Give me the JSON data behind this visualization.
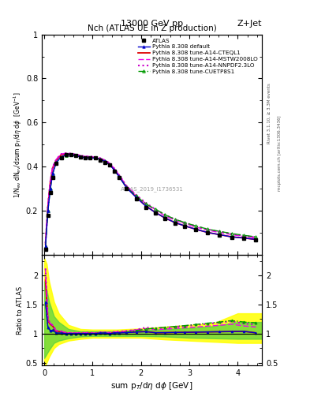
{
  "title_left": "13000 GeV pp",
  "title_right": "Z+Jet",
  "plot_title": "Nch (ATLAS UE in Z production)",
  "ylabel_main": "1/N_{ev} dN_{ev}/dsum p_{T}/d\\eta d\\phi  [GeV^{-1}]",
  "ylabel_ratio": "Ratio to ATLAS",
  "watermark": "ATLAS_2019_I1736531",
  "rivet_text": "Rivet 3.1.10, ≥ 3.3M events",
  "mcplots_text": "mcplots.cern.ch [arXiv:1306.3436]",
  "xlim": [
    -0.05,
    4.5
  ],
  "ylim_main": [
    0,
    1.0
  ],
  "ylim_ratio": [
    0.45,
    2.35
  ],
  "atlas_x": [
    0.025,
    0.075,
    0.125,
    0.175,
    0.25,
    0.35,
    0.45,
    0.55,
    0.65,
    0.75,
    0.85,
    0.95,
    1.05,
    1.15,
    1.25,
    1.35,
    1.45,
    1.55,
    1.7,
    1.9,
    2.1,
    2.3,
    2.5,
    2.7,
    2.9,
    3.125,
    3.375,
    3.625,
    3.875,
    4.125,
    4.375
  ],
  "atlas_y": [
    0.026,
    0.18,
    0.285,
    0.35,
    0.415,
    0.44,
    0.455,
    0.455,
    0.45,
    0.445,
    0.44,
    0.44,
    0.44,
    0.43,
    0.42,
    0.41,
    0.38,
    0.35,
    0.3,
    0.255,
    0.215,
    0.19,
    0.165,
    0.145,
    0.13,
    0.115,
    0.1,
    0.09,
    0.08,
    0.075,
    0.07
  ],
  "default_x": [
    0.025,
    0.075,
    0.125,
    0.175,
    0.25,
    0.35,
    0.45,
    0.55,
    0.65,
    0.75,
    0.85,
    0.95,
    1.05,
    1.15,
    1.25,
    1.35,
    1.45,
    1.55,
    1.7,
    1.9,
    2.1,
    2.3,
    2.5,
    2.7,
    2.9,
    3.125,
    3.375,
    3.625,
    3.875,
    4.125,
    4.375
  ],
  "default_y": [
    0.04,
    0.2,
    0.3,
    0.37,
    0.42,
    0.445,
    0.455,
    0.455,
    0.45,
    0.445,
    0.44,
    0.44,
    0.44,
    0.435,
    0.425,
    0.41,
    0.385,
    0.355,
    0.305,
    0.262,
    0.222,
    0.193,
    0.168,
    0.148,
    0.133,
    0.118,
    0.103,
    0.093,
    0.083,
    0.078,
    0.071
  ],
  "cteq_x": [
    0.025,
    0.075,
    0.125,
    0.175,
    0.25,
    0.35,
    0.45,
    0.55,
    0.65,
    0.75,
    0.85,
    0.95,
    1.05,
    1.15,
    1.25,
    1.35,
    1.45,
    1.55,
    1.7,
    1.9,
    2.1,
    2.3,
    2.5,
    2.7,
    2.9,
    3.125,
    3.375,
    3.625,
    3.875,
    4.125,
    4.375
  ],
  "cteq_y": [
    0.05,
    0.22,
    0.33,
    0.395,
    0.43,
    0.455,
    0.458,
    0.456,
    0.452,
    0.447,
    0.443,
    0.443,
    0.441,
    0.436,
    0.426,
    0.412,
    0.387,
    0.357,
    0.307,
    0.263,
    0.223,
    0.193,
    0.168,
    0.148,
    0.133,
    0.118,
    0.103,
    0.093,
    0.083,
    0.078,
    0.071
  ],
  "mstw_x": [
    0.025,
    0.075,
    0.125,
    0.175,
    0.25,
    0.35,
    0.45,
    0.55,
    0.65,
    0.75,
    0.85,
    0.95,
    1.05,
    1.15,
    1.25,
    1.35,
    1.45,
    1.55,
    1.7,
    1.9,
    2.1,
    2.3,
    2.5,
    2.7,
    2.9,
    3.125,
    3.375,
    3.625,
    3.875,
    4.125,
    4.375
  ],
  "mstw_y": [
    0.055,
    0.225,
    0.335,
    0.4,
    0.435,
    0.458,
    0.462,
    0.46,
    0.456,
    0.451,
    0.447,
    0.447,
    0.444,
    0.44,
    0.43,
    0.417,
    0.392,
    0.362,
    0.314,
    0.272,
    0.233,
    0.203,
    0.178,
    0.158,
    0.143,
    0.128,
    0.113,
    0.103,
    0.093,
    0.085,
    0.078
  ],
  "nnpdf_x": [
    0.025,
    0.075,
    0.125,
    0.175,
    0.25,
    0.35,
    0.45,
    0.55,
    0.65,
    0.75,
    0.85,
    0.95,
    1.05,
    1.15,
    1.25,
    1.35,
    1.45,
    1.55,
    1.7,
    1.9,
    2.1,
    2.3,
    2.5,
    2.7,
    2.9,
    3.125,
    3.375,
    3.625,
    3.875,
    4.125,
    4.375
  ],
  "nnpdf_y": [
    0.055,
    0.225,
    0.335,
    0.4,
    0.435,
    0.458,
    0.462,
    0.46,
    0.456,
    0.451,
    0.447,
    0.447,
    0.444,
    0.44,
    0.43,
    0.417,
    0.392,
    0.362,
    0.314,
    0.272,
    0.237,
    0.207,
    0.182,
    0.162,
    0.147,
    0.132,
    0.117,
    0.107,
    0.097,
    0.088,
    0.081
  ],
  "cuetp_x": [
    0.025,
    0.075,
    0.125,
    0.175,
    0.25,
    0.35,
    0.45,
    0.55,
    0.65,
    0.75,
    0.85,
    0.95,
    1.05,
    1.15,
    1.25,
    1.35,
    1.45,
    1.55,
    1.7,
    1.9,
    2.1,
    2.3,
    2.5,
    2.7,
    2.9,
    3.125,
    3.375,
    3.625,
    3.875,
    4.125,
    4.375
  ],
  "cuetp_y": [
    0.04,
    0.2,
    0.3,
    0.37,
    0.42,
    0.445,
    0.453,
    0.455,
    0.45,
    0.445,
    0.44,
    0.44,
    0.44,
    0.435,
    0.425,
    0.41,
    0.385,
    0.355,
    0.307,
    0.268,
    0.232,
    0.208,
    0.183,
    0.163,
    0.148,
    0.133,
    0.118,
    0.108,
    0.098,
    0.09,
    0.083
  ],
  "ratio_default_y": [
    1.54,
    1.11,
    1.05,
    1.06,
    1.01,
    1.01,
    1.0,
    1.0,
    1.0,
    1.0,
    1.0,
    1.0,
    1.0,
    1.01,
    1.01,
    0.998,
    1.013,
    1.014,
    1.017,
    1.027,
    1.033,
    1.017,
    1.018,
    1.021,
    1.023,
    1.026,
    1.03,
    1.033,
    1.038,
    1.04,
    1.014
  ],
  "ratio_cteq_y": [
    1.92,
    1.22,
    1.16,
    1.13,
    1.036,
    1.034,
    1.007,
    1.002,
    1.004,
    1.004,
    1.007,
    1.007,
    1.002,
    1.014,
    1.014,
    1.005,
    1.018,
    1.02,
    1.023,
    1.031,
    1.037,
    1.016,
    1.018,
    1.021,
    1.023,
    1.026,
    1.03,
    1.033,
    1.038,
    1.04,
    1.014
  ],
  "ratio_mstw_y": [
    2.12,
    1.25,
    1.175,
    1.143,
    1.048,
    1.041,
    1.016,
    1.011,
    1.013,
    1.013,
    1.016,
    1.016,
    1.009,
    1.023,
    1.024,
    1.017,
    1.031,
    1.034,
    1.047,
    1.067,
    1.086,
    1.068,
    1.079,
    1.09,
    1.1,
    1.113,
    1.13,
    1.144,
    1.163,
    1.133,
    1.114
  ],
  "ratio_nnpdf_y": [
    2.12,
    1.25,
    1.175,
    1.143,
    1.048,
    1.041,
    1.016,
    1.011,
    1.013,
    1.013,
    1.016,
    1.016,
    1.009,
    1.023,
    1.024,
    1.017,
    1.031,
    1.034,
    1.047,
    1.067,
    1.105,
    1.089,
    1.103,
    1.117,
    1.131,
    1.148,
    1.17,
    1.189,
    1.213,
    1.173,
    1.157
  ],
  "ratio_cuetp_y": [
    1.54,
    1.11,
    1.05,
    1.06,
    1.01,
    1.01,
    0.996,
    1.0,
    1.0,
    1.0,
    1.0,
    1.0,
    1.0,
    1.012,
    1.012,
    1.0,
    1.013,
    1.014,
    1.023,
    1.051,
    1.079,
    1.095,
    1.109,
    1.124,
    1.138,
    1.157,
    1.18,
    1.2,
    1.225,
    1.2,
    1.186
  ],
  "yellow_band_x": [
    0.0,
    0.05,
    0.1,
    0.2,
    0.3,
    0.5,
    0.75,
    1.0,
    1.5,
    2.0,
    2.5,
    3.0,
    3.5,
    4.0,
    4.5
  ],
  "yellow_band_low": [
    0.42,
    0.5,
    0.6,
    0.75,
    0.82,
    0.88,
    0.91,
    0.93,
    0.93,
    0.93,
    0.9,
    0.88,
    0.86,
    0.84,
    0.84
  ],
  "yellow_band_high": [
    2.3,
    2.2,
    1.9,
    1.55,
    1.35,
    1.15,
    1.08,
    1.07,
    1.07,
    1.09,
    1.12,
    1.15,
    1.18,
    1.35,
    1.35
  ],
  "green_band_x": [
    0.0,
    0.05,
    0.1,
    0.2,
    0.3,
    0.5,
    0.75,
    1.0,
    1.5,
    2.0,
    2.5,
    3.0,
    3.5,
    4.0,
    4.5
  ],
  "green_band_low": [
    0.58,
    0.65,
    0.72,
    0.84,
    0.88,
    0.92,
    0.95,
    0.96,
    0.96,
    0.96,
    0.95,
    0.93,
    0.92,
    0.91,
    0.91
  ],
  "green_band_high": [
    1.9,
    1.75,
    1.55,
    1.3,
    1.2,
    1.08,
    1.04,
    1.04,
    1.04,
    1.06,
    1.08,
    1.1,
    1.13,
    1.2,
    1.2
  ],
  "color_default": "#0000cc",
  "color_cteq": "#dd0000",
  "color_mstw": "#ee00ee",
  "color_nnpdf": "#cc00cc",
  "color_cuetp": "#009900",
  "marker_size": 3.5,
  "line_width": 1.0
}
